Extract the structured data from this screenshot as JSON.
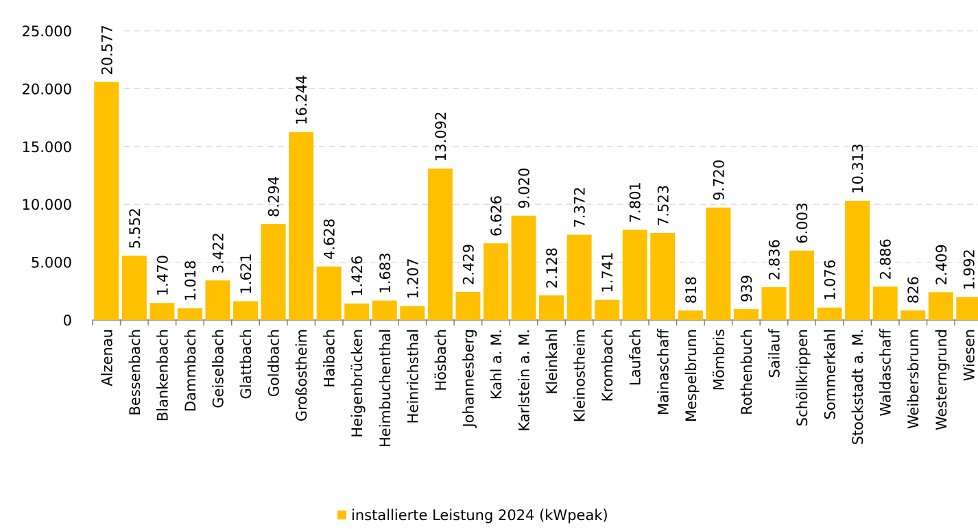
{
  "chart_data": {
    "type": "bar",
    "categories": [
      "Alzenau",
      "Bessenbach",
      "Blankenbach",
      "Dammbach",
      "Geiselbach",
      "Glattbach",
      "Goldbach",
      "Großostheim",
      "Haibach",
      "Heigenbrücken",
      "Heimbuchenthal",
      "Heinrichsthal",
      "Hösbach",
      "Johannesberg",
      "Kahl a. M.",
      "Karlstein a. M.",
      "Kleinkahl",
      "Kleinostheim",
      "Krombach",
      "Laufach",
      "Mainaschaff",
      "Mespelbrunn",
      "Mömbris",
      "Rothenbuch",
      "Sailauf",
      "Schöllkrippen",
      "Sommerkahl",
      "Stockstadt a. M.",
      "Waldaschaff",
      "Weibersbrunn",
      "Westerngrund",
      "Wiesen"
    ],
    "series": [
      {
        "name": "installierte Leistung 2024 (kWpeak)",
        "color": "#ffc000",
        "values": [
          20577,
          5552,
          1470,
          1018,
          3422,
          1621,
          8294,
          16244,
          4628,
          1426,
          1683,
          1207,
          13092,
          2429,
          6626,
          9020,
          2128,
          7372,
          1741,
          7801,
          7523,
          818,
          9720,
          939,
          2836,
          6003,
          1076,
          10313,
          2886,
          826,
          2409,
          1992
        ],
        "value_labels": [
          "20.577",
          "5.552",
          "1.470",
          "1.018",
          "3.422",
          "1.621",
          "8.294",
          "16.244",
          "4.628",
          "1.426",
          "1.683",
          "1.207",
          "13.092",
          "2.429",
          "6.626",
          "9.020",
          "2.128",
          "7.372",
          "1.741",
          "7.801",
          "7.523",
          "818",
          "9.720",
          "939",
          "2.836",
          "6.003",
          "1.076",
          "10.313",
          "2.886",
          "826",
          "2.409",
          "1.992"
        ]
      }
    ],
    "ylim": [
      0,
      25000
    ],
    "yticks": [
      0,
      {
        "value": 5000,
        "label": "5.000"
      },
      {
        "value": 10000,
        "label": "10.000"
      },
      {
        "value": 15000,
        "label": "15.000"
      },
      {
        "value": 20000,
        "label": "20.000"
      },
      {
        "value": 25000,
        "label": "25.000"
      }
    ],
    "grid": true,
    "legend": "bottom"
  }
}
